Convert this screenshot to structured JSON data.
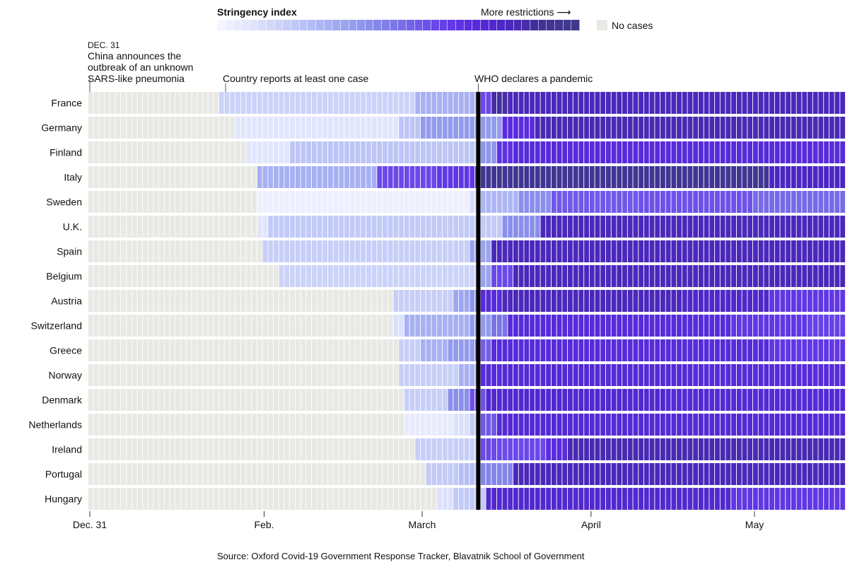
{
  "legend": {
    "title": "Stringency index",
    "more_label": "More restrictions",
    "arrow": "⟶",
    "no_cases_label": "No cases",
    "no_cases_color": "#e8e9e4",
    "scale_colors": [
      "#f4f5ff",
      "#dce1fb",
      "#c2caf7",
      "#a7b1f2",
      "#8e96ec",
      "#7a73e8",
      "#6a48ea",
      "#5a2ce0",
      "#4c26c4",
      "#433197",
      "#3f3a8c"
    ]
  },
  "annotations": {
    "china_date": "DEC. 31",
    "china_text": [
      "China announces the",
      "outbreak of an unknown",
      "SARS-like pneumonia"
    ],
    "case_text": "Country reports at least one case",
    "who_text": "WHO declares a pandemic"
  },
  "source": "Source: Oxford Covid-19 Government Response Tracker, Blavatnik School of Government",
  "chart_data": {
    "type": "heatmap",
    "x_start": "2019-12-31",
    "x_end": "2020-05-17",
    "xticks": [
      {
        "label": "Dec. 31",
        "date": "2019-12-31"
      },
      {
        "label": "Feb.",
        "date": "2020-02-01"
      },
      {
        "label": "March",
        "date": "2020-03-01"
      },
      {
        "label": "April",
        "date": "2020-04-01"
      },
      {
        "label": "May",
        "date": "2020-05-01"
      }
    ],
    "who_pandemic_date": "2020-03-11",
    "value_scale": [
      0,
      100
    ],
    "countries": [
      {
        "name": "France",
        "first_case": "2020-01-24",
        "segments": [
          [
            "2020-01-24",
            16
          ],
          [
            "2020-02-29",
            30
          ],
          [
            "2020-03-12",
            60
          ],
          [
            "2020-03-14",
            88
          ],
          [
            "2020-03-17",
            82
          ],
          [
            "2020-05-11",
            82
          ]
        ]
      },
      {
        "name": "Germany",
        "first_case": "2020-01-27",
        "segments": [
          [
            "2020-01-27",
            8
          ],
          [
            "2020-02-26",
            22
          ],
          [
            "2020-03-01",
            38
          ],
          [
            "2020-03-13",
            38
          ],
          [
            "2020-03-16",
            70
          ],
          [
            "2020-03-22",
            84
          ]
        ]
      },
      {
        "name": "Finland",
        "first_case": "2020-01-29",
        "segments": [
          [
            "2020-01-29",
            8
          ],
          [
            "2020-02-06",
            22
          ],
          [
            "2020-03-12",
            40
          ],
          [
            "2020-03-15",
            68
          ],
          [
            "2020-03-18",
            72
          ]
        ]
      },
      {
        "name": "Italy",
        "first_case": "2020-01-31",
        "segments": [
          [
            "2020-01-31",
            30
          ],
          [
            "2020-02-22",
            60
          ],
          [
            "2020-03-04",
            66
          ],
          [
            "2020-03-11",
            94
          ],
          [
            "2020-05-04",
            80
          ]
        ]
      },
      {
        "name": "Sweden",
        "first_case": "2020-01-31",
        "segments": [
          [
            "2020-01-31",
            3
          ],
          [
            "2020-03-10",
            12
          ],
          [
            "2020-03-12",
            28
          ],
          [
            "2020-03-19",
            42
          ],
          [
            "2020-03-25",
            56
          ],
          [
            "2020-04-10",
            58
          ],
          [
            "2020-05-01",
            52
          ]
        ]
      },
      {
        "name": "U.K.",
        "first_case": "2020-01-31",
        "segments": [
          [
            "2020-01-31",
            8
          ],
          [
            "2020-02-02",
            20
          ],
          [
            "2020-03-12",
            20
          ],
          [
            "2020-03-16",
            42
          ],
          [
            "2020-03-23",
            82
          ]
        ]
      },
      {
        "name": "Spain",
        "first_case": "2020-02-01",
        "segments": [
          [
            "2020-02-01",
            18
          ],
          [
            "2020-03-10",
            35
          ],
          [
            "2020-03-14",
            82
          ]
        ]
      },
      {
        "name": "Belgium",
        "first_case": "2020-02-04",
        "segments": [
          [
            "2020-02-04",
            16
          ],
          [
            "2020-03-12",
            35
          ],
          [
            "2020-03-14",
            60
          ],
          [
            "2020-03-18",
            82
          ]
        ]
      },
      {
        "name": "Austria",
        "first_case": "2020-02-25",
        "segments": [
          [
            "2020-02-25",
            18
          ],
          [
            "2020-03-07",
            34
          ],
          [
            "2020-03-10",
            40
          ],
          [
            "2020-03-12",
            72
          ],
          [
            "2020-03-16",
            82
          ],
          [
            "2020-04-18",
            78
          ],
          [
            "2020-05-04",
            66
          ]
        ]
      },
      {
        "name": "Switzerland",
        "first_case": "2020-02-25",
        "segments": [
          [
            "2020-02-25",
            10
          ],
          [
            "2020-02-27",
            30
          ],
          [
            "2020-03-10",
            38
          ],
          [
            "2020-03-14",
            50
          ],
          [
            "2020-03-17",
            72
          ],
          [
            "2020-04-27",
            66
          ],
          [
            "2020-05-11",
            62
          ]
        ]
      },
      {
        "name": "Greece",
        "first_case": "2020-02-26",
        "segments": [
          [
            "2020-02-26",
            18
          ],
          [
            "2020-03-01",
            30
          ],
          [
            "2020-03-06",
            38
          ],
          [
            "2020-03-11",
            55
          ],
          [
            "2020-03-14",
            72
          ],
          [
            "2020-05-04",
            66
          ]
        ]
      },
      {
        "name": "Norway",
        "first_case": "2020-02-26",
        "segments": [
          [
            "2020-02-26",
            18
          ],
          [
            "2020-03-08",
            30
          ],
          [
            "2020-03-12",
            72
          ],
          [
            "2020-03-16",
            74
          ],
          [
            "2020-04-20",
            72
          ]
        ]
      },
      {
        "name": "Denmark",
        "first_case": "2020-02-27",
        "segments": [
          [
            "2020-02-27",
            18
          ],
          [
            "2020-03-06",
            42
          ],
          [
            "2020-03-10",
            58
          ],
          [
            "2020-03-13",
            76
          ],
          [
            "2020-04-15",
            74
          ]
        ]
      },
      {
        "name": "Netherlands",
        "first_case": "2020-02-27",
        "segments": [
          [
            "2020-02-27",
            5
          ],
          [
            "2020-03-07",
            10
          ],
          [
            "2020-03-10",
            20
          ],
          [
            "2020-03-12",
            56
          ],
          [
            "2020-03-15",
            74
          ]
        ]
      },
      {
        "name": "Ireland",
        "first_case": "2020-02-29",
        "segments": [
          [
            "2020-02-29",
            18
          ],
          [
            "2020-03-12",
            60
          ],
          [
            "2020-03-24",
            70
          ],
          [
            "2020-03-28",
            84
          ]
        ]
      },
      {
        "name": "Portugal",
        "first_case": "2020-03-02",
        "segments": [
          [
            "2020-03-02",
            20
          ],
          [
            "2020-03-08",
            25
          ],
          [
            "2020-03-12",
            45
          ],
          [
            "2020-03-18",
            82
          ]
        ]
      },
      {
        "name": "Hungary",
        "first_case": "2020-03-04",
        "segments": [
          [
            "2020-03-04",
            10
          ],
          [
            "2020-03-07",
            20
          ],
          [
            "2020-03-13",
            76
          ],
          [
            "2020-04-27",
            66
          ]
        ]
      }
    ]
  }
}
